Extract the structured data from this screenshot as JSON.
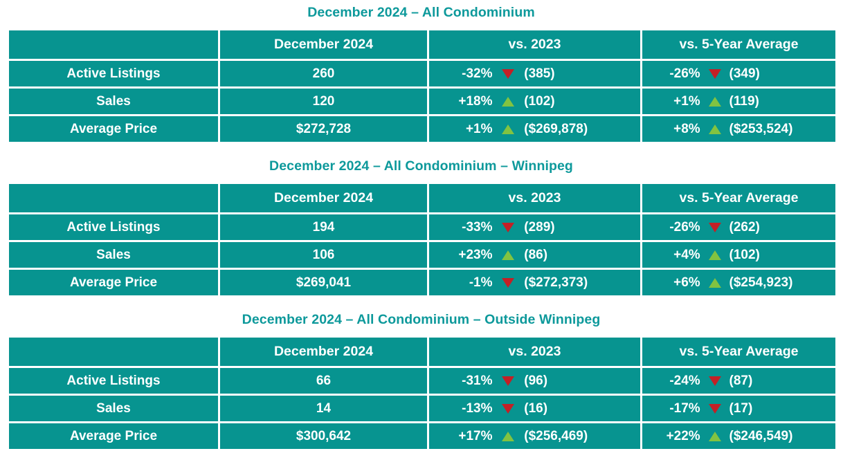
{
  "colors": {
    "table_background": "#079490",
    "title_text": "#0d999b",
    "cell_text": "#ffffff",
    "negative_triangle": "#c32026",
    "positive_triangle": "#82c341"
  },
  "chart_data": [
    {
      "type": "table",
      "title": "December 2024 – All Condominium",
      "columns": [
        "",
        "December 2024",
        "vs. 2023",
        "vs. 5-Year Average"
      ],
      "rows": [
        {
          "label": "Active Listings",
          "december": "260",
          "vs_2023": {
            "pct": "-32%",
            "dir": "down",
            "ref": "(385)"
          },
          "vs_5yr": {
            "pct": "-26%",
            "dir": "down",
            "ref": "(349)"
          }
        },
        {
          "label": "Sales",
          "december": "120",
          "vs_2023": {
            "pct": "+18%",
            "dir": "up",
            "ref": "(102)"
          },
          "vs_5yr": {
            "pct": "+1%",
            "dir": "up",
            "ref": "(119)"
          }
        },
        {
          "label": "Average Price",
          "december": "$272,728",
          "vs_2023": {
            "pct": "+1%",
            "dir": "up",
            "ref": "($269,878)"
          },
          "vs_5yr": {
            "pct": "+8%",
            "dir": "up",
            "ref": "($253,524)"
          }
        }
      ]
    },
    {
      "type": "table",
      "title": "December 2024 – All Condominium – Winnipeg",
      "columns": [
        "",
        "December 2024",
        "vs. 2023",
        "vs. 5-Year Average"
      ],
      "rows": [
        {
          "label": "Active Listings",
          "december": "194",
          "vs_2023": {
            "pct": "-33%",
            "dir": "down",
            "ref": "(289)"
          },
          "vs_5yr": {
            "pct": "-26%",
            "dir": "down",
            "ref": "(262)"
          }
        },
        {
          "label": "Sales",
          "december": "106",
          "vs_2023": {
            "pct": "+23%",
            "dir": "up",
            "ref": "(86)"
          },
          "vs_5yr": {
            "pct": "+4%",
            "dir": "up",
            "ref": "(102)"
          }
        },
        {
          "label": "Average Price",
          "december": "$269,041",
          "vs_2023": {
            "pct": "-1%",
            "dir": "down",
            "ref": "($272,373)"
          },
          "vs_5yr": {
            "pct": "+6%",
            "dir": "up",
            "ref": "($254,923)"
          }
        }
      ]
    },
    {
      "type": "table",
      "title": "December 2024 – All Condominium – Outside Winnipeg",
      "columns": [
        "",
        "December 2024",
        "vs. 2023",
        "vs. 5-Year Average"
      ],
      "rows": [
        {
          "label": "Active Listings",
          "december": "66",
          "vs_2023": {
            "pct": "-31%",
            "dir": "down",
            "ref": "(96)"
          },
          "vs_5yr": {
            "pct": "-24%",
            "dir": "down",
            "ref": "(87)"
          }
        },
        {
          "label": "Sales",
          "december": "14",
          "vs_2023": {
            "pct": "-13%",
            "dir": "down",
            "ref": "(16)"
          },
          "vs_5yr": {
            "pct": "-17%",
            "dir": "down",
            "ref": "(17)"
          }
        },
        {
          "label": "Average Price",
          "december": "$300,642",
          "vs_2023": {
            "pct": "+17%",
            "dir": "up",
            "ref": "($256,469)"
          },
          "vs_5yr": {
            "pct": "+22%",
            "dir": "up",
            "ref": "($246,549)"
          }
        }
      ]
    }
  ]
}
